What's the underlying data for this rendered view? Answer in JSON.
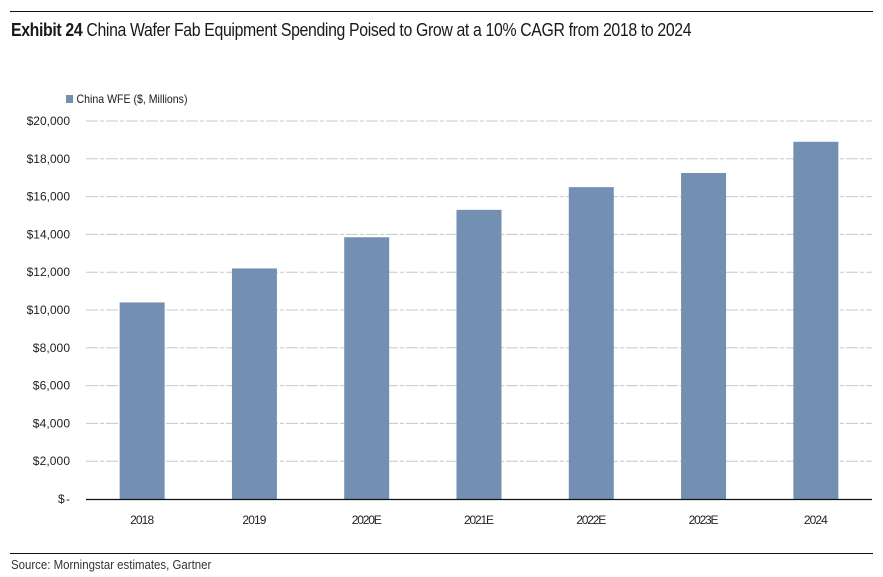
{
  "header": {
    "exhibit_label": "Exhibit 24",
    "title_text": "China Wafer Fab Equipment Spending Poised to Grow at a 10% CAGR from 2018 to 2024"
  },
  "footer": {
    "source": "Source: Morningstar estimates, Gartner"
  },
  "colors": {
    "bar": "#7390b3",
    "gridline": "#c8c8c8",
    "axis": "#111111"
  },
  "chart_data": {
    "type": "bar",
    "title": "Exhibit 24 China Wafer Fab Equipment Spending Poised to Grow at a 10% CAGR from 2018 to 2024",
    "xlabel": "",
    "ylabel": "",
    "categories": [
      "2018",
      "2019",
      "2020E",
      "2021E",
      "2022E",
      "2023E",
      "2024"
    ],
    "series": [
      {
        "name": "China WFE ($, Millions)",
        "values": [
          10400,
          12200,
          13850,
          15300,
          16500,
          17250,
          18900
        ]
      }
    ],
    "ylim": [
      0,
      20000
    ],
    "yticks": [
      0,
      2000,
      4000,
      6000,
      8000,
      10000,
      12000,
      14000,
      16000,
      18000,
      20000
    ],
    "ytick_labels": [
      "$-",
      "$2,000",
      "$4,000",
      "$6,000",
      "$8,000",
      "$10,000",
      "$12,000",
      "$14,000",
      "$16,000",
      "$18,000",
      "$20,000"
    ],
    "grid": true,
    "legend": "top-left"
  }
}
